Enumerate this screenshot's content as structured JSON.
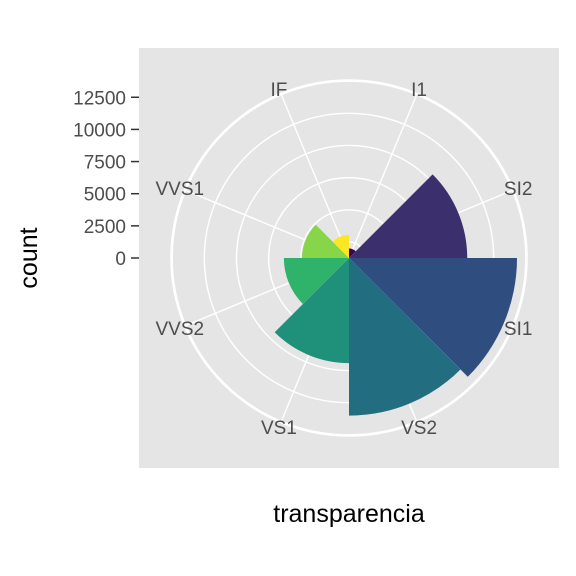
{
  "chart_data": {
    "type": "bar",
    "coord": "polar",
    "categories": [
      "I1",
      "SI2",
      "SI1",
      "VS2",
      "VS1",
      "VVS2",
      "VVS1",
      "IF"
    ],
    "values": [
      741,
      9194,
      13065,
      12258,
      8171,
      5066,
      3655,
      1790
    ],
    "colors": [
      "#440154",
      "#3b2f6e",
      "#2f4d7f",
      "#226d7f",
      "#1f9079",
      "#2fb26a",
      "#87d549",
      "#fde725"
    ],
    "xlabel": "transparencia",
    "ylabel": "count",
    "yticks": [
      0,
      2500,
      5000,
      7500,
      10000,
      12500
    ],
    "ytick_labels": [
      "0",
      "2500",
      "5000",
      "7500",
      "10000",
      "12500"
    ],
    "ylim": [
      0,
      13065
    ],
    "grid": true,
    "legend": "none",
    "panel_background": "#e5e5e5",
    "grid_color": "#ffffff"
  }
}
